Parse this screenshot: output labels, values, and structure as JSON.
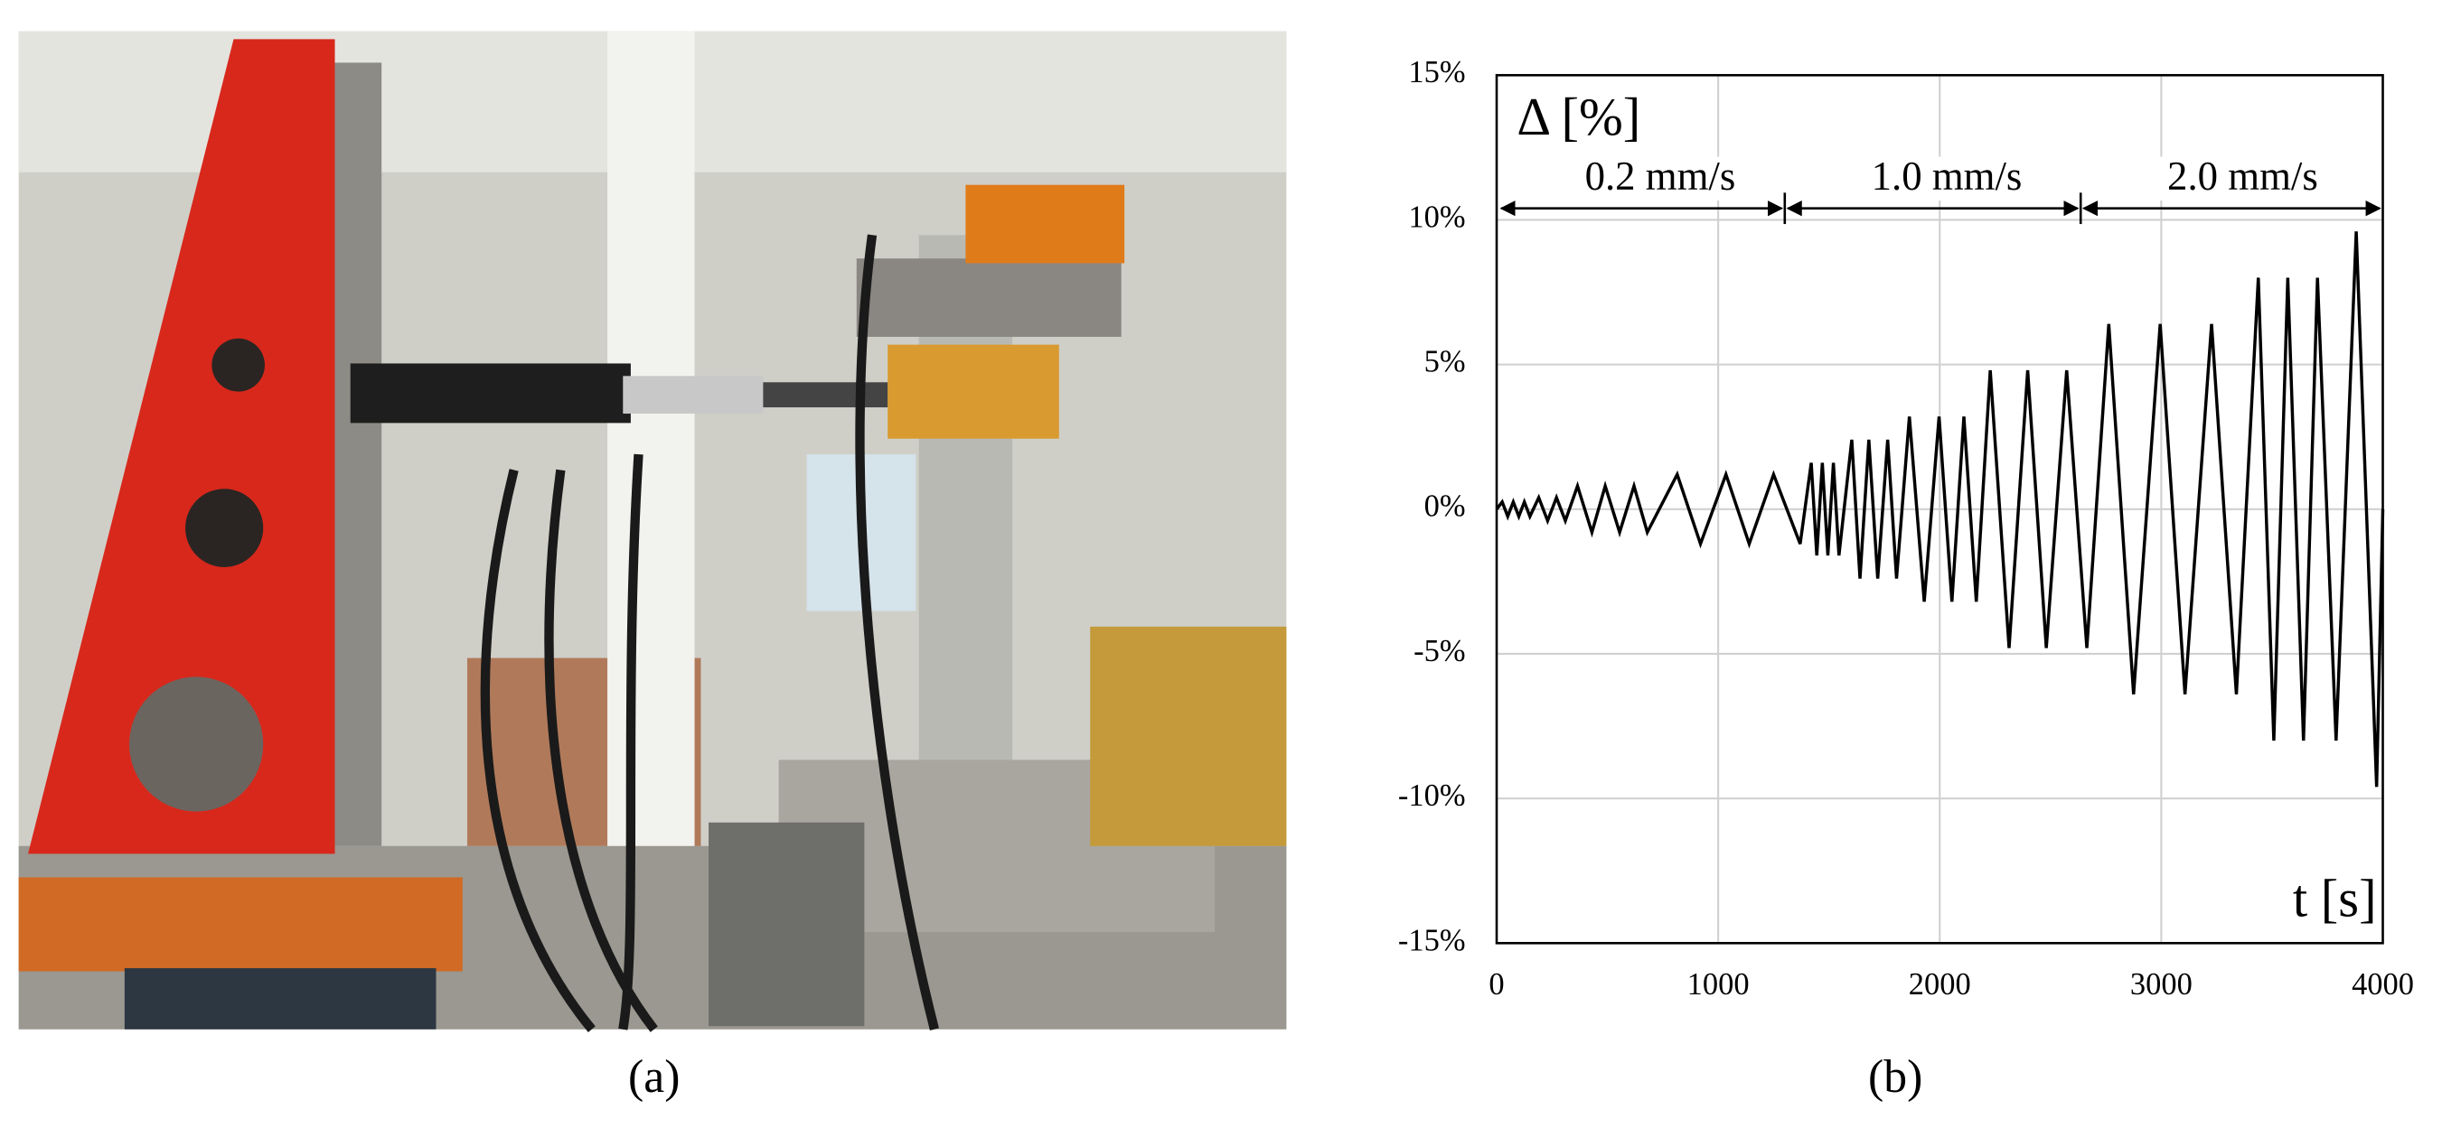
{
  "photo": {
    "label": "(a)"
  },
  "chart_data": {
    "type": "line",
    "panel_label": "(b)",
    "y_label": "Δ [%]",
    "x_label": "t [s]",
    "annotations": [
      "0.2 mm/s",
      "1.0 mm/s",
      "2.0 mm/s"
    ],
    "x": [
      0,
      25,
      50,
      75,
      100,
      125,
      150,
      190,
      230,
      270,
      310,
      365,
      430,
      490,
      555,
      620,
      680,
      815,
      920,
      1035,
      1140,
      1250,
      1370,
      1420,
      1445,
      1470,
      1495,
      1520,
      1545,
      1603,
      1640,
      1680,
      1720,
      1765,
      1805,
      1863,
      1930,
      1997,
      2055,
      2109,
      2165,
      2228,
      2313,
      2397,
      2481,
      2573,
      2664,
      2763,
      2875,
      2995,
      3107,
      3227,
      3339,
      3438,
      3508,
      3571,
      3642,
      3705,
      3789,
      3880,
      3972,
      4000
    ],
    "values": [
      0,
      0.25,
      -0.25,
      0.25,
      -0.25,
      0.25,
      -0.25,
      0.4,
      -0.4,
      0.4,
      -0.4,
      0.8,
      -0.8,
      0.8,
      -0.8,
      0.8,
      -0.8,
      1.2,
      -1.2,
      1.2,
      -1.2,
      1.2,
      -1.2,
      1.6,
      -1.6,
      1.6,
      -1.6,
      1.6,
      -1.6,
      2.4,
      -2.4,
      2.4,
      -2.4,
      2.4,
      -2.4,
      3.2,
      -3.2,
      3.2,
      -3.2,
      3.2,
      -3.2,
      4.8,
      -4.8,
      4.8,
      -4.8,
      4.8,
      -4.8,
      6.4,
      -6.4,
      6.4,
      -6.4,
      6.4,
      -6.4,
      8,
      -8,
      8,
      -8,
      8,
      -8,
      9.6,
      -9.6,
      0
    ],
    "color": "#000000",
    "xlim": [
      0,
      4000
    ],
    "xticks": [
      0,
      1000,
      2000,
      3000,
      4000
    ],
    "ylim": [
      -15,
      15
    ],
    "yticks": [
      {
        "value": -15,
        "label": "-15%"
      },
      {
        "value": -10,
        "label": "-10%"
      },
      {
        "value": -5,
        "label": "-5%"
      },
      {
        "value": 0,
        "label": "0%"
      },
      {
        "value": 5,
        "label": "5%"
      },
      {
        "value": 10,
        "label": "10%"
      },
      {
        "value": 15,
        "label": "15%"
      }
    ],
    "grid": true
  }
}
